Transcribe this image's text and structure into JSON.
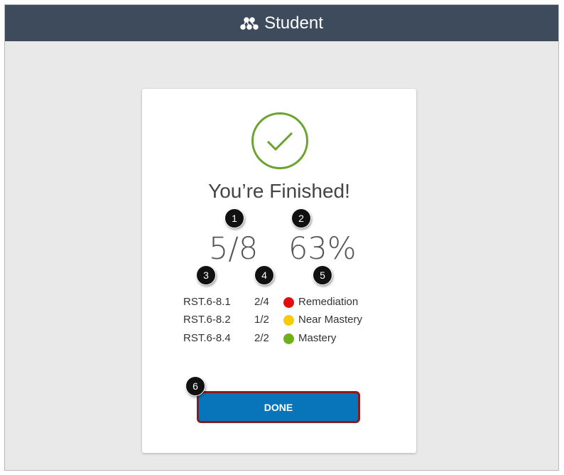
{
  "header": {
    "title": "Student",
    "icon": "network-dots-icon"
  },
  "result": {
    "title": "You’re Finished!",
    "score": "5/8",
    "percent": "63%",
    "icon": "checkmark-circle-icon",
    "accent": "#6aa32e"
  },
  "standards": [
    {
      "code": "RST.6-8.1",
      "score": "2/4",
      "status": "Remediation",
      "color": "#e30d0d"
    },
    {
      "code": "RST.6-8.2",
      "score": "1/2",
      "status": "Near Mastery",
      "color": "#f5cb0a"
    },
    {
      "code": "RST.6-8.4",
      "score": "2/2",
      "status": "Mastery",
      "color": "#6fb01c"
    }
  ],
  "done_button": {
    "label": "DONE",
    "color": "#0874b9"
  },
  "callouts": [
    "1",
    "2",
    "3",
    "4",
    "5",
    "6"
  ]
}
